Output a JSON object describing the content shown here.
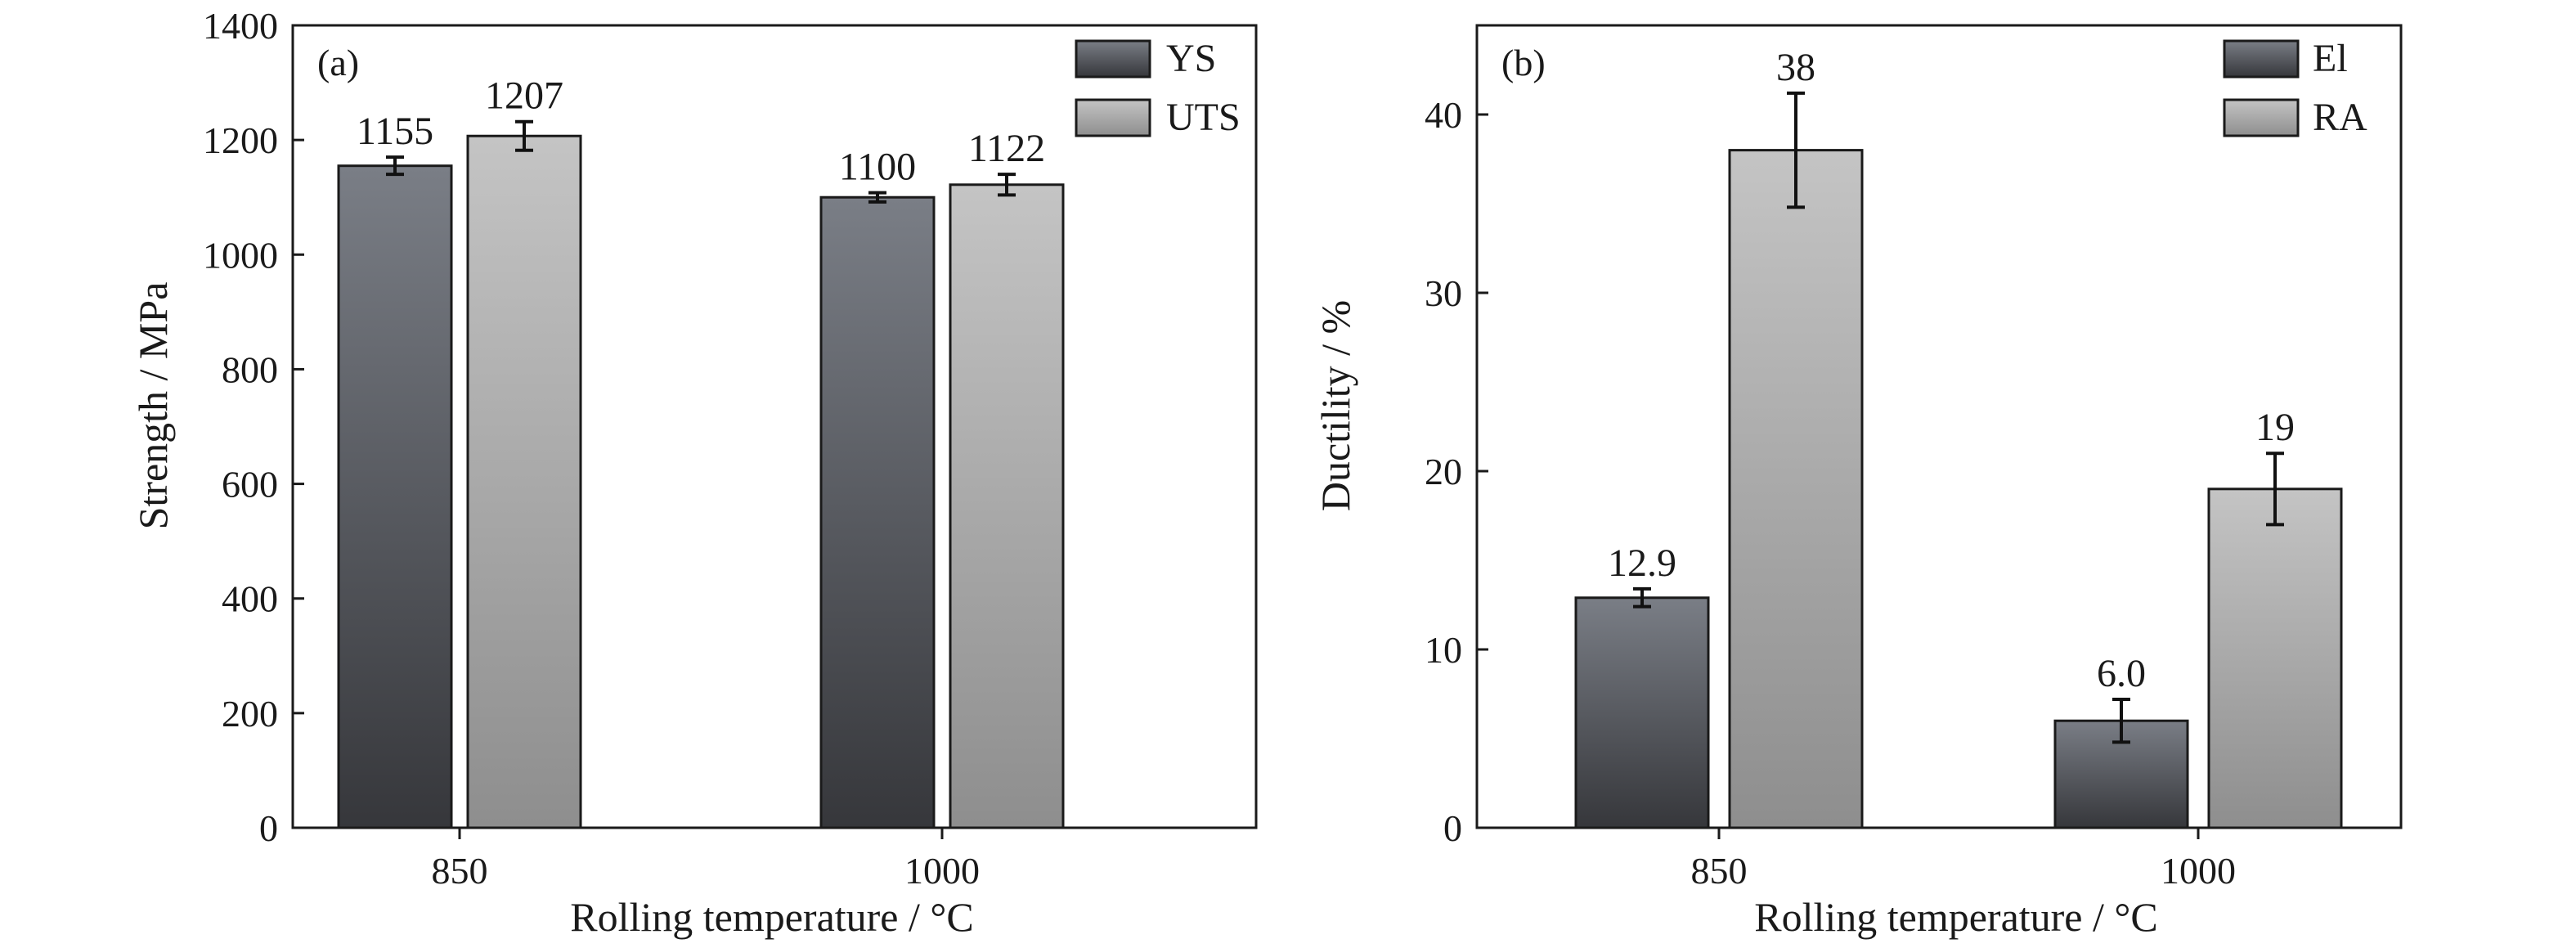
{
  "colors": {
    "dark_top": "#7a7e86",
    "dark_bottom": "#36373b",
    "light_top": "#c4c4c4",
    "light_bottom": "#8e8e8e",
    "axis": "#1a1a1a"
  },
  "chart_data": [
    {
      "type": "bar",
      "panel_tag": "(a)",
      "categories": [
        "850",
        "1000"
      ],
      "xlabel": "Rolling temperature / °C",
      "ylabel": "Strength / MPa",
      "ylim": [
        0,
        1400
      ],
      "yticks": [
        0,
        200,
        400,
        600,
        800,
        1000,
        1200,
        1400
      ],
      "legend_position": "top-right",
      "series": [
        {
          "name": "YS",
          "values": [
            1155,
            1100
          ],
          "errors": [
            15,
            8
          ],
          "labels": [
            "1155",
            "1100"
          ],
          "color": "dark"
        },
        {
          "name": "UTS",
          "values": [
            1207,
            1122
          ],
          "errors": [
            25,
            18
          ],
          "labels": [
            "1207",
            "1122"
          ],
          "color": "light"
        }
      ]
    },
    {
      "type": "bar",
      "panel_tag": "(b)",
      "categories": [
        "850",
        "1000"
      ],
      "xlabel": "Rolling temperature / °C",
      "ylabel": "Ductility / %",
      "ylim": [
        0,
        45
      ],
      "yticks": [
        0,
        10,
        20,
        30,
        40
      ],
      "legend_position": "top-right",
      "series": [
        {
          "name": "El",
          "values": [
            12.9,
            6.0
          ],
          "errors": [
            0.5,
            1.2
          ],
          "labels": [
            "12.9",
            "6.0"
          ],
          "color": "dark"
        },
        {
          "name": "RA",
          "values": [
            38,
            19
          ],
          "errors": [
            3.2,
            2.0
          ],
          "labels": [
            "38",
            "19"
          ],
          "color": "light"
        }
      ]
    }
  ]
}
